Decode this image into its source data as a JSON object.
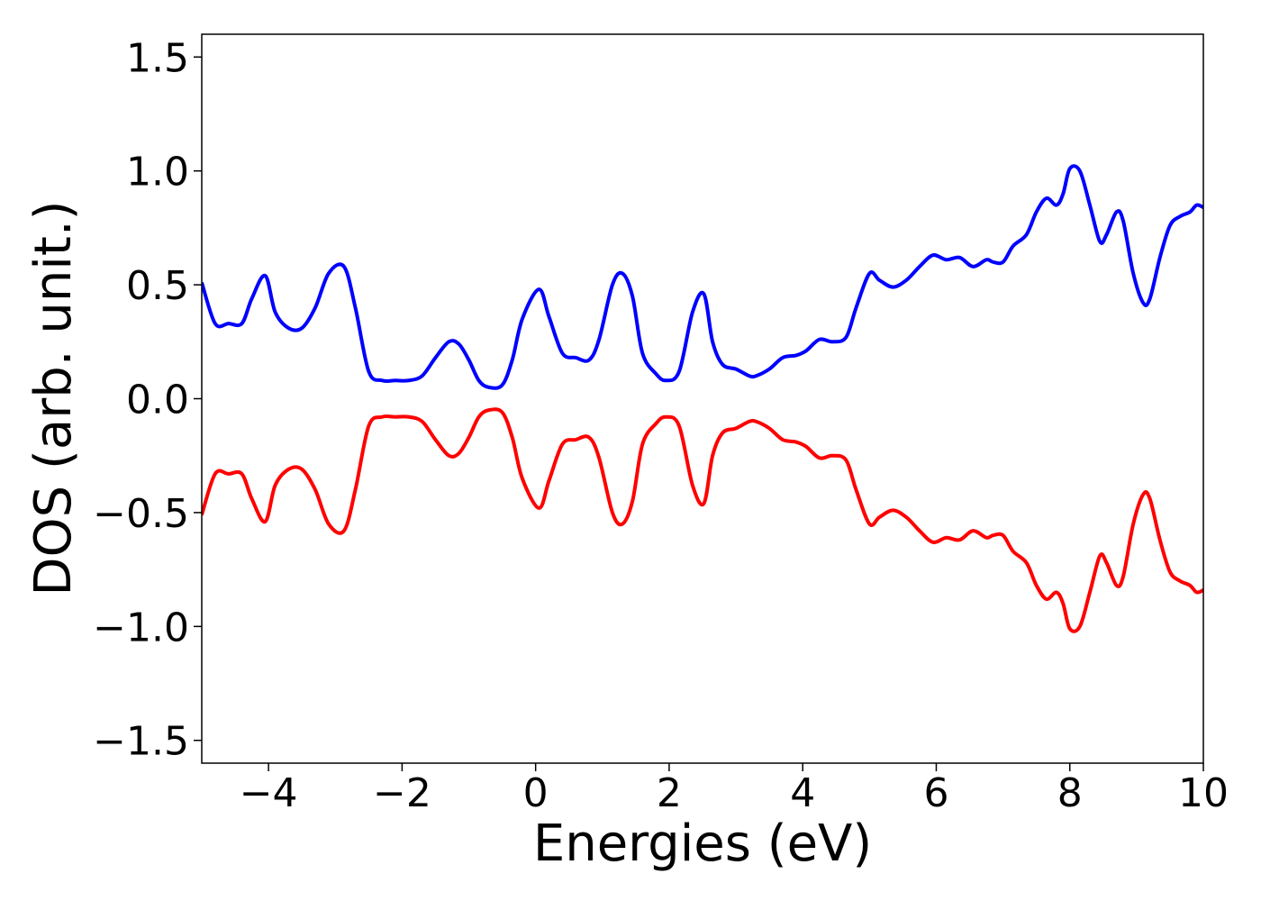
{
  "chart_data": {
    "type": "line",
    "title": "",
    "xlabel": "Energies (eV)",
    "ylabel": "DOS (arb. unit.)",
    "xlim": [
      -5,
      10
    ],
    "ylim": [
      -1.6,
      1.6
    ],
    "xticks": [
      -4,
      -2,
      0,
      2,
      4,
      6,
      8,
      10
    ],
    "xtick_labels": [
      "−4",
      "−2",
      "0",
      "2",
      "4",
      "6",
      "8",
      "10"
    ],
    "yticks": [
      -1.5,
      -1.0,
      -0.5,
      0.0,
      0.5,
      1.0,
      1.5
    ],
    "ytick_labels": [
      "−1.5",
      "−1.0",
      "−0.5",
      "0.0",
      "0.5",
      "1.0",
      "1.5"
    ],
    "grid": false,
    "legend": "none",
    "series": [
      {
        "color": "#0000ff",
        "x": [
          -5.0,
          -4.8,
          -4.6,
          -4.4,
          -4.25,
          -4.05,
          -3.9,
          -3.7,
          -3.5,
          -3.3,
          -3.1,
          -2.87,
          -2.7,
          -2.5,
          -2.3,
          -2.1,
          -1.9,
          -1.7,
          -1.5,
          -1.3,
          -1.15,
          -1.0,
          -0.85,
          -0.7,
          -0.5,
          -0.35,
          -0.2,
          0.05,
          0.2,
          0.4,
          0.6,
          0.8,
          0.95,
          1.15,
          1.3,
          1.45,
          1.6,
          1.8,
          1.95,
          2.15,
          2.35,
          2.52,
          2.65,
          2.8,
          3.0,
          3.2,
          3.3,
          3.5,
          3.7,
          3.9,
          4.05,
          4.25,
          4.45,
          4.65,
          4.8,
          5.0,
          5.15,
          5.35,
          5.55,
          5.75,
          5.95,
          6.15,
          6.35,
          6.55,
          6.75,
          6.85,
          7.0,
          7.15,
          7.35,
          7.5,
          7.65,
          7.8,
          7.9,
          8.0,
          8.15,
          8.3,
          8.45,
          8.55,
          8.7,
          8.8,
          8.95,
          9.1,
          9.2,
          9.35,
          9.5,
          9.65,
          9.8,
          9.9,
          10.0
        ],
        "values": [
          0.51,
          0.33,
          0.33,
          0.33,
          0.44,
          0.54,
          0.38,
          0.31,
          0.31,
          0.4,
          0.55,
          0.58,
          0.4,
          0.12,
          0.08,
          0.08,
          0.08,
          0.1,
          0.18,
          0.25,
          0.24,
          0.17,
          0.08,
          0.05,
          0.06,
          0.17,
          0.35,
          0.48,
          0.36,
          0.2,
          0.18,
          0.17,
          0.26,
          0.5,
          0.55,
          0.45,
          0.2,
          0.11,
          0.08,
          0.12,
          0.38,
          0.46,
          0.25,
          0.15,
          0.13,
          0.1,
          0.1,
          0.13,
          0.18,
          0.19,
          0.21,
          0.26,
          0.25,
          0.27,
          0.4,
          0.55,
          0.52,
          0.49,
          0.52,
          0.58,
          0.63,
          0.61,
          0.62,
          0.58,
          0.61,
          0.6,
          0.6,
          0.67,
          0.72,
          0.82,
          0.88,
          0.85,
          0.9,
          1.01,
          1.0,
          0.85,
          0.69,
          0.72,
          0.82,
          0.78,
          0.55,
          0.42,
          0.44,
          0.62,
          0.76,
          0.8,
          0.82,
          0.85,
          0.84
        ]
      },
      {
        "color": "#ff0000",
        "x": [
          -5.0,
          -4.8,
          -4.6,
          -4.4,
          -4.25,
          -4.05,
          -3.9,
          -3.7,
          -3.5,
          -3.3,
          -3.1,
          -2.87,
          -2.7,
          -2.5,
          -2.3,
          -2.1,
          -1.9,
          -1.7,
          -1.5,
          -1.3,
          -1.15,
          -1.0,
          -0.85,
          -0.7,
          -0.5,
          -0.35,
          -0.2,
          0.05,
          0.2,
          0.4,
          0.6,
          0.8,
          0.95,
          1.15,
          1.3,
          1.45,
          1.6,
          1.8,
          1.95,
          2.15,
          2.35,
          2.52,
          2.65,
          2.8,
          3.0,
          3.2,
          3.3,
          3.5,
          3.7,
          3.9,
          4.05,
          4.25,
          4.45,
          4.65,
          4.8,
          5.0,
          5.15,
          5.35,
          5.55,
          5.75,
          5.95,
          6.15,
          6.35,
          6.55,
          6.75,
          6.85,
          7.0,
          7.15,
          7.35,
          7.5,
          7.65,
          7.8,
          7.9,
          8.0,
          8.15,
          8.3,
          8.45,
          8.55,
          8.7,
          8.8,
          8.95,
          9.1,
          9.2,
          9.35,
          9.5,
          9.65,
          9.8,
          9.9,
          10.0
        ],
        "values": [
          -0.51,
          -0.33,
          -0.33,
          -0.33,
          -0.44,
          -0.54,
          -0.38,
          -0.31,
          -0.31,
          -0.4,
          -0.55,
          -0.58,
          -0.4,
          -0.12,
          -0.08,
          -0.08,
          -0.08,
          -0.1,
          -0.18,
          -0.25,
          -0.24,
          -0.17,
          -0.08,
          -0.05,
          -0.06,
          -0.17,
          -0.35,
          -0.48,
          -0.36,
          -0.2,
          -0.18,
          -0.17,
          -0.26,
          -0.5,
          -0.55,
          -0.45,
          -0.2,
          -0.11,
          -0.08,
          -0.12,
          -0.38,
          -0.46,
          -0.25,
          -0.15,
          -0.13,
          -0.1,
          -0.1,
          -0.13,
          -0.18,
          -0.19,
          -0.21,
          -0.26,
          -0.25,
          -0.27,
          -0.4,
          -0.55,
          -0.52,
          -0.49,
          -0.52,
          -0.58,
          -0.63,
          -0.61,
          -0.62,
          -0.58,
          -0.61,
          -0.6,
          -0.6,
          -0.67,
          -0.72,
          -0.82,
          -0.88,
          -0.85,
          -0.9,
          -1.01,
          -1.0,
          -0.85,
          -0.69,
          -0.72,
          -0.82,
          -0.78,
          -0.55,
          -0.42,
          -0.44,
          -0.62,
          -0.76,
          -0.8,
          -0.82,
          -0.85,
          -0.84
        ]
      }
    ]
  }
}
